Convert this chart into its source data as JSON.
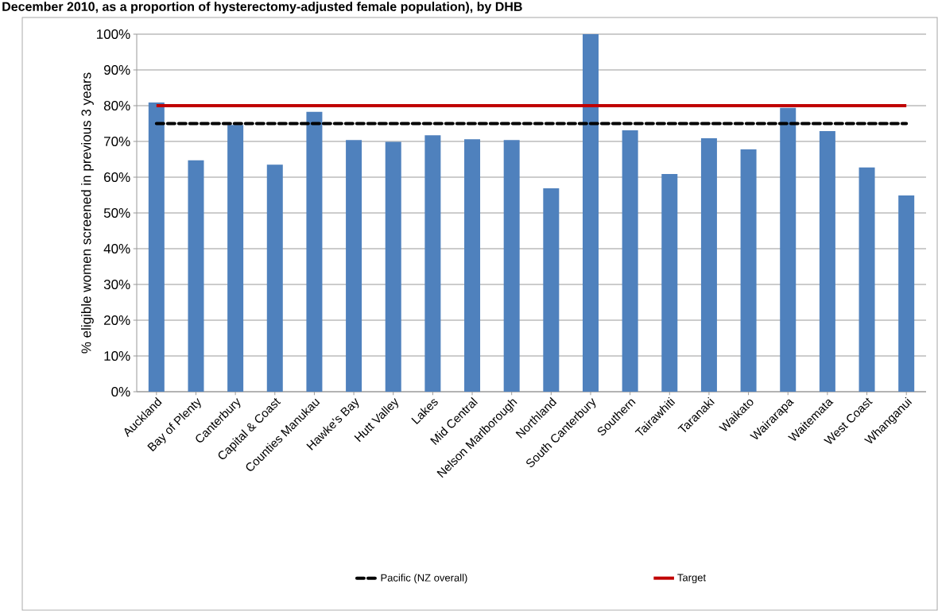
{
  "chart_data": {
    "type": "bar",
    "title": "December 2010, as a proportion of hysterectomy-adjusted female population), by DHB",
    "ylabel": "% eligible women screened in previous 3 years",
    "categories": [
      "Auckland",
      "Bay of Plenty",
      "Canterbury",
      "Capital & Coast",
      "Counties Manukau",
      "Hawke's Bay",
      "Hutt Valley",
      "Lakes",
      "Mid Central",
      "Nelson Marlborough",
      "Northland",
      "South Canterbury",
      "Southern",
      "Tairawhiti",
      "Taranaki",
      "Waikato",
      "Wairarapa",
      "Waitemata",
      "West Coast",
      "Whanganui"
    ],
    "series": [
      {
        "color": "#4f81bd",
        "values": [
          80.9,
          64.7,
          74.6,
          63.5,
          78.3,
          70.4,
          69.9,
          71.7,
          70.6,
          70.4,
          56.9,
          100,
          73.1,
          60.9,
          70.9,
          67.8,
          79.4,
          72.9,
          62.7,
          54.9
        ]
      },
      {
        "type": "line",
        "name": "Pacific (NZ overall)",
        "color": "#000000",
        "line_style": "dashed",
        "values": [
          75,
          75,
          75,
          75,
          75,
          75,
          75,
          75,
          75,
          75,
          75,
          75,
          75,
          75,
          75,
          75,
          75,
          75,
          75,
          75
        ]
      },
      {
        "type": "line",
        "name": "Target",
        "color": "#c00000",
        "line_style": "solid",
        "values": [
          80,
          80,
          80,
          80,
          80,
          80,
          80,
          80,
          80,
          80,
          80,
          80,
          80,
          80,
          80,
          80,
          80,
          80,
          80,
          80
        ]
      }
    ],
    "ylim": [
      0,
      100
    ],
    "yticks": [
      {
        "value": 0,
        "label": "0%"
      },
      {
        "value": 10,
        "label": "10%"
      },
      {
        "value": 20,
        "label": "20%"
      },
      {
        "value": 30,
        "label": "30%"
      },
      {
        "value": 40,
        "label": "40%"
      },
      {
        "value": 50,
        "label": "50%"
      },
      {
        "value": 60,
        "label": "60%"
      },
      {
        "value": 70,
        "label": "70%"
      },
      {
        "value": 80,
        "label": "80%"
      },
      {
        "value": 90,
        "label": "90%"
      },
      {
        "value": 100,
        "label": "100%"
      }
    ],
    "grid": "y",
    "legend": "bottom"
  }
}
